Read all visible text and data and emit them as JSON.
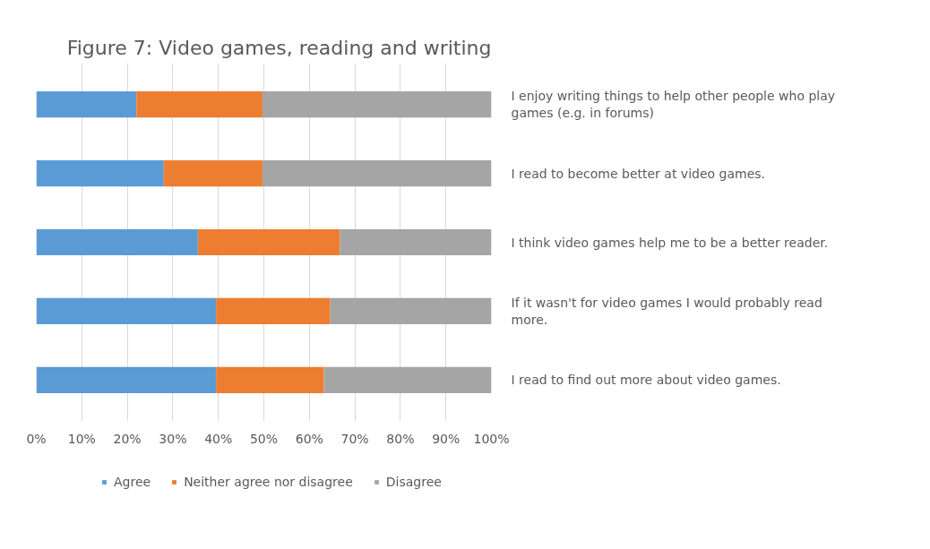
{
  "chart_data": {
    "type": "bar",
    "orientation": "horizontal",
    "stacked": true,
    "title": "Figure 7: Video games, reading and writing",
    "categories": [
      "I enjoy writing things to help other people who play games (e.g. in forums)",
      "I read to become better at video games.",
      "I think video games help me to be a better reader.",
      "If it wasn't for video games I would probably read more.",
      "I read to find out more about video games."
    ],
    "series": [
      {
        "name": "Agree",
        "color": "#5b9bd5",
        "values": [
          22,
          28,
          35.5,
          39.5,
          39.5
        ]
      },
      {
        "name": "Neither agree nor disagree",
        "color": "#ed7d31",
        "values": [
          27.7,
          21.7,
          31.2,
          25.1,
          23.7
        ]
      },
      {
        "name": "Disagree",
        "color": "#a5a5a5",
        "values": [
          50.3,
          50.3,
          33.3,
          35.4,
          36.8
        ]
      }
    ],
    "xlim": [
      0,
      100
    ],
    "xticks": [
      {
        "value": 0,
        "label": "0%"
      },
      {
        "value": 10,
        "label": "10%"
      },
      {
        "value": 20,
        "label": "20%"
      },
      {
        "value": 30,
        "label": "30%"
      },
      {
        "value": 40,
        "label": "40%"
      },
      {
        "value": 50,
        "label": "50%"
      },
      {
        "value": 60,
        "label": "60%"
      },
      {
        "value": 70,
        "label": "70%"
      },
      {
        "value": 80,
        "label": "80%"
      },
      {
        "value": 90,
        "label": "90%"
      },
      {
        "value": 100,
        "label": "100%"
      }
    ],
    "grid": "x",
    "legend": "bottom"
  }
}
